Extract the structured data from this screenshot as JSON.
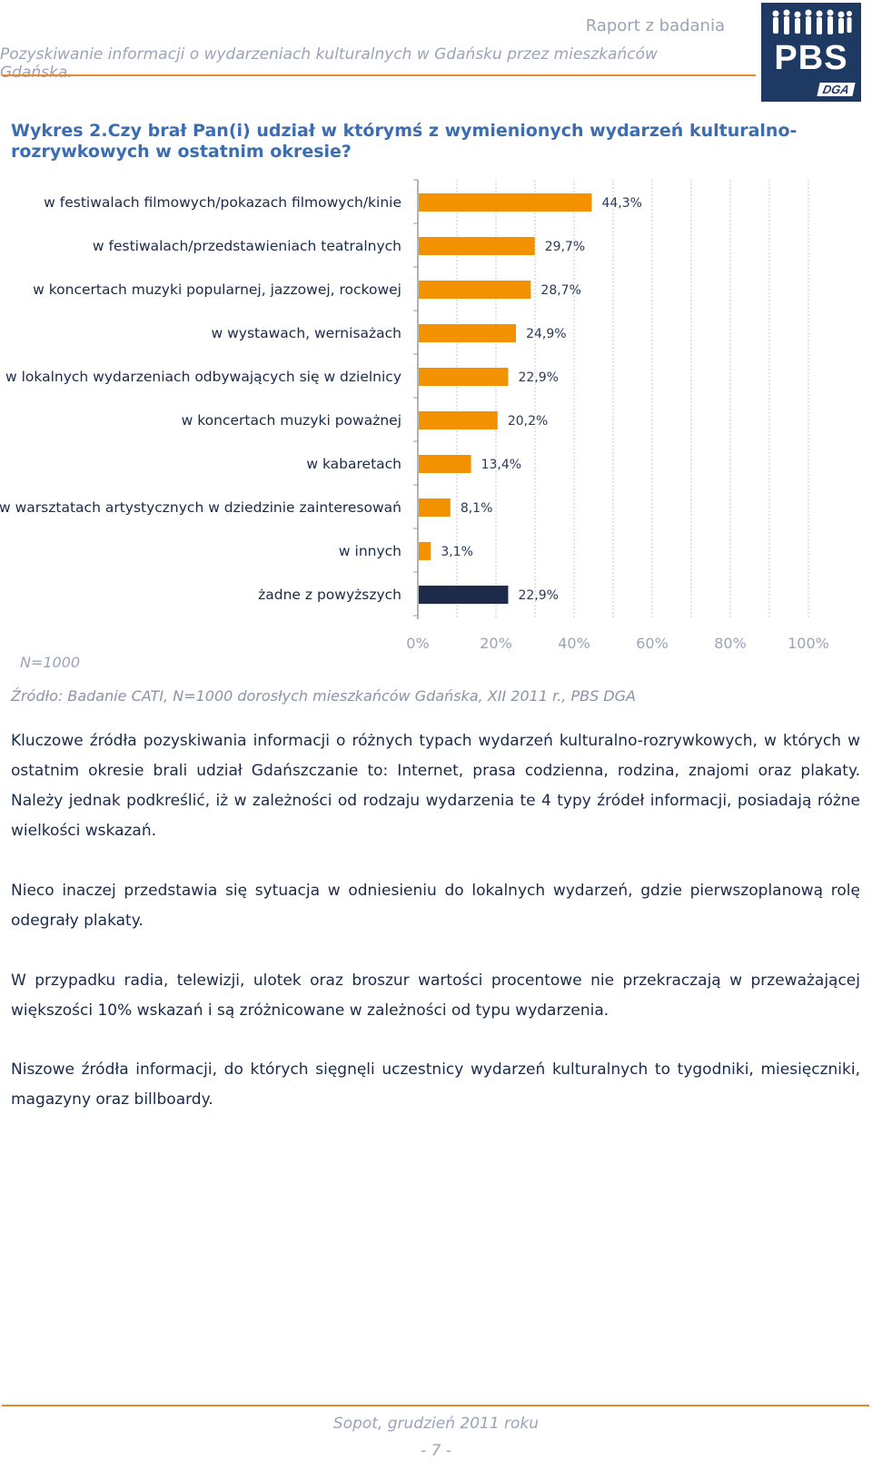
{
  "header": {
    "line1": "Raport z badania",
    "line2": "Pozyskiwanie informacji o wydarzeniach kulturalnych w Gdańsku przez mieszkańców Gdańska.",
    "logo_text": "PBS",
    "logo_sub": "DGA"
  },
  "chart_title": "Wykres 2.Czy brał Pan(i) udział w którymś z wymienionych wydarzeń kulturalno-rozrywkowych w ostatnim okresie?",
  "chart_data": {
    "type": "bar",
    "orientation": "horizontal",
    "categories": [
      "w festiwalach filmowych/pokazach filmowych/kinie",
      "w festiwalach/przedstawieniach teatralnych",
      "w koncertach muzyki popularnej, jazzowej, rockowej",
      "w wystawach, wernisażach",
      "w lokalnych wydarzeniach odbywających się w dzielnicy",
      "w koncertach muzyki poważnej",
      "w kabaretach",
      "w warsztatach artystycznych w dziedzinie  zainteresowań",
      "w innych",
      "żadne z powyższych"
    ],
    "values": [
      44.3,
      29.7,
      28.7,
      24.9,
      22.9,
      20.2,
      13.4,
      8.1,
      3.1,
      22.9
    ],
    "value_labels": [
      "44,3%",
      "29,7%",
      "28,7%",
      "24,9%",
      "22,9%",
      "20,2%",
      "13,4%",
      "8,1%",
      "3,1%",
      "22,9%"
    ],
    "colors": [
      "#f39200",
      "#f39200",
      "#f39200",
      "#f39200",
      "#f39200",
      "#f39200",
      "#f39200",
      "#f39200",
      "#f39200",
      "#1e2a4a"
    ],
    "xlim": [
      0,
      100
    ],
    "xticks": [
      "0%",
      "20%",
      "40%",
      "60%",
      "80%",
      "100%"
    ],
    "grid": true
  },
  "sample_note": "N=1000",
  "source": "Źródło: Badanie CATI, N=1000 dorosłych mieszkańców Gdańska, XII 2011 r., PBS DGA",
  "paragraphs": [
    "Kluczowe źródła pozyskiwania informacji o różnych typach wydarzeń kulturalno-rozrywkowych, w których w ostatnim okresie brali udział Gdańszczanie to: Internet, prasa codzienna, rodzina, znajomi oraz plakaty. Należy jednak podkreślić, iż w zależności od rodzaju wydarzenia te 4 typy źródeł informacji, posiadają różne wielkości wskazań.",
    "Nieco inaczej przedstawia się sytuacja w odniesieniu do lokalnych wydarzeń, gdzie pierwszoplanową rolę odegrały plakaty.",
    "W przypadku radia, telewizji, ulotek oraz broszur wartości procentowe nie przekraczają w przeważającej większości 10% wskazań i są zróżnicowane w zależności od typu wydarzenia.",
    "Niszowe źródła informacji, do których sięgnęli uczestnicy wydarzeń kulturalnych to tygodniki, miesięczniki, magazyny oraz billboardy."
  ],
  "footer": {
    "date": "Sopot, grudzień 2011 roku",
    "page": "- 7 -"
  }
}
